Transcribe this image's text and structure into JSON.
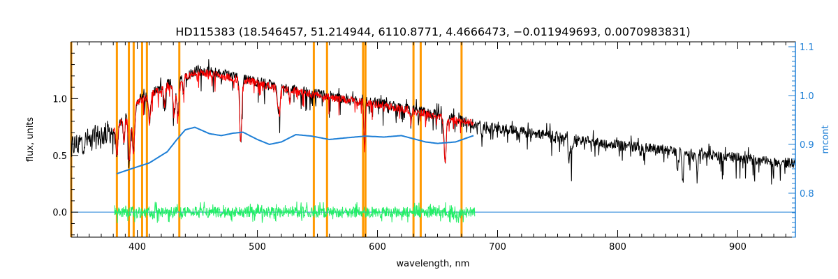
{
  "chart_data": {
    "type": "line",
    "title": "HD115383    (18.546457, 51.214944, 6110.8771, 4.4666473, −0.011949693, 0.0070983831)",
    "xlabel": "wavelength, nm",
    "ylabel": "flux, units",
    "ylabel_right": "mcont",
    "xlim": [
      345,
      948
    ],
    "ylim": [
      -0.22,
      1.5
    ],
    "ylim_right": [
      0.71,
      1.11
    ],
    "x_ticks": [
      400,
      500,
      600,
      700,
      800,
      900
    ],
    "x_tick_labels": [
      "400",
      "500",
      "600",
      "700",
      "800",
      "900"
    ],
    "y_ticks": [
      0.0,
      0.5,
      1.0
    ],
    "y_tick_labels": [
      "0.0",
      "0.5",
      "1.0"
    ],
    "y_right_ticks": [
      0.8,
      0.9,
      1.0,
      1.1
    ],
    "y_right_tick_labels": [
      "0.8",
      "0.9",
      "1.0",
      "1.1"
    ],
    "grid": false,
    "colors": {
      "observed": "#000000",
      "model": "#ff0000",
      "continuum": "#1e7fd6",
      "residuals": "#22ee66",
      "masks": "#ff9900",
      "right_axis": "#1e7fd6"
    },
    "mask_lines": [
      345,
      383,
      393,
      397,
      404,
      408,
      435,
      547,
      558,
      588,
      590,
      630,
      636,
      670
    ],
    "series": [
      {
        "role": "observed",
        "x": [
          345,
          355,
          365,
          375,
          380,
          385,
          390,
          395,
          400,
          410,
          420,
          430,
          440,
          450,
          460,
          470,
          480,
          490,
          500,
          520,
          540,
          560,
          580,
          600,
          620,
          640,
          660,
          680,
          700,
          720,
          740,
          760,
          780,
          800,
          820,
          840,
          860,
          880,
          900,
          920,
          948
        ],
        "y": [
          0.58,
          0.62,
          0.66,
          0.7,
          0.72,
          0.78,
          0.85,
          0.92,
          0.98,
          1.04,
          1.1,
          1.15,
          1.2,
          1.25,
          1.24,
          1.22,
          1.2,
          1.17,
          1.15,
          1.1,
          1.06,
          1.02,
          0.99,
          0.96,
          0.92,
          0.88,
          0.83,
          0.78,
          0.74,
          0.71,
          0.68,
          0.65,
          0.62,
          0.59,
          0.57,
          0.55,
          0.52,
          0.5,
          0.48,
          0.45,
          0.43
        ]
      },
      {
        "role": "model",
        "x": [
          380,
          390,
          400,
          410,
          420,
          430,
          440,
          450,
          460,
          470,
          480,
          490,
          500,
          520,
          540,
          560,
          580,
          600,
          620,
          640,
          660,
          680
        ],
        "y": [
          0.74,
          0.84,
          0.96,
          1.03,
          1.09,
          1.14,
          1.19,
          1.23,
          1.22,
          1.2,
          1.18,
          1.16,
          1.14,
          1.09,
          1.05,
          1.01,
          0.98,
          0.95,
          0.91,
          0.87,
          0.82,
          0.78
        ]
      },
      {
        "role": "continuum",
        "x": [
          383,
          395,
          410,
          425,
          433,
          440,
          448,
          460,
          470,
          480,
          488,
          500,
          510,
          520,
          532,
          545,
          560,
          572,
          590,
          605,
          620,
          640,
          650,
          665,
          680
        ],
        "y": [
          0.84,
          0.85,
          0.862,
          0.885,
          0.91,
          0.93,
          0.935,
          0.922,
          0.918,
          0.923,
          0.925,
          0.91,
          0.9,
          0.905,
          0.92,
          0.917,
          0.91,
          0.913,
          0.917,
          0.915,
          0.918,
          0.905,
          0.902,
          0.905,
          0.918
        ]
      },
      {
        "role": "residuals",
        "x_range": [
          381,
          681
        ],
        "y_amplitude": 0.06
      }
    ]
  }
}
